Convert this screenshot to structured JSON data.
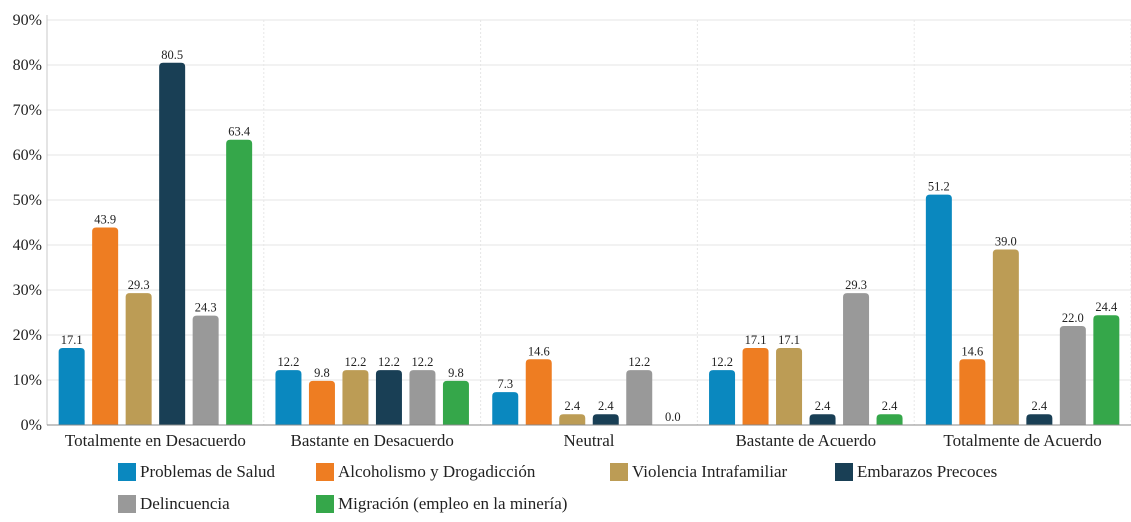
{
  "chart_data": {
    "type": "bar",
    "categories": [
      "Totalmente en Desacuerdo",
      "Bastante en Desacuerdo",
      "Neutral",
      "Bastante de Acuerdo",
      "Totalmente de Acuerdo"
    ],
    "series": [
      {
        "name": "Problemas de Salud",
        "color": "#0a88bf",
        "values": [
          17.1,
          12.2,
          7.3,
          12.2,
          51.2
        ]
      },
      {
        "name": "Alcoholismo y Drogadicción",
        "color": "#ee7d22",
        "values": [
          43.9,
          9.8,
          14.6,
          17.1,
          14.6
        ]
      },
      {
        "name": "Violencia Intrafamiliar",
        "color": "#bc9c55",
        "values": [
          29.3,
          12.2,
          2.4,
          17.1,
          39.0
        ]
      },
      {
        "name": "Embarazos Precoces",
        "color": "#193f55",
        "values": [
          80.5,
          12.2,
          2.4,
          2.4,
          2.4
        ]
      },
      {
        "name": "Delincuencia",
        "color": "#999999",
        "values": [
          24.3,
          12.2,
          12.2,
          29.3,
          22.0
        ]
      },
      {
        "name": "Migración (empleo en la minería)",
        "color": "#35a74a",
        "values": [
          63.4,
          9.8,
          0.0,
          2.4,
          24.4
        ]
      }
    ],
    "ylim": [
      0,
      90
    ],
    "yticks": [
      "0%",
      "10%",
      "20%",
      "30%",
      "40%",
      "50%",
      "60%",
      "70%",
      "80%",
      "90%"
    ],
    "grid": true,
    "legend_position": "bottom"
  }
}
